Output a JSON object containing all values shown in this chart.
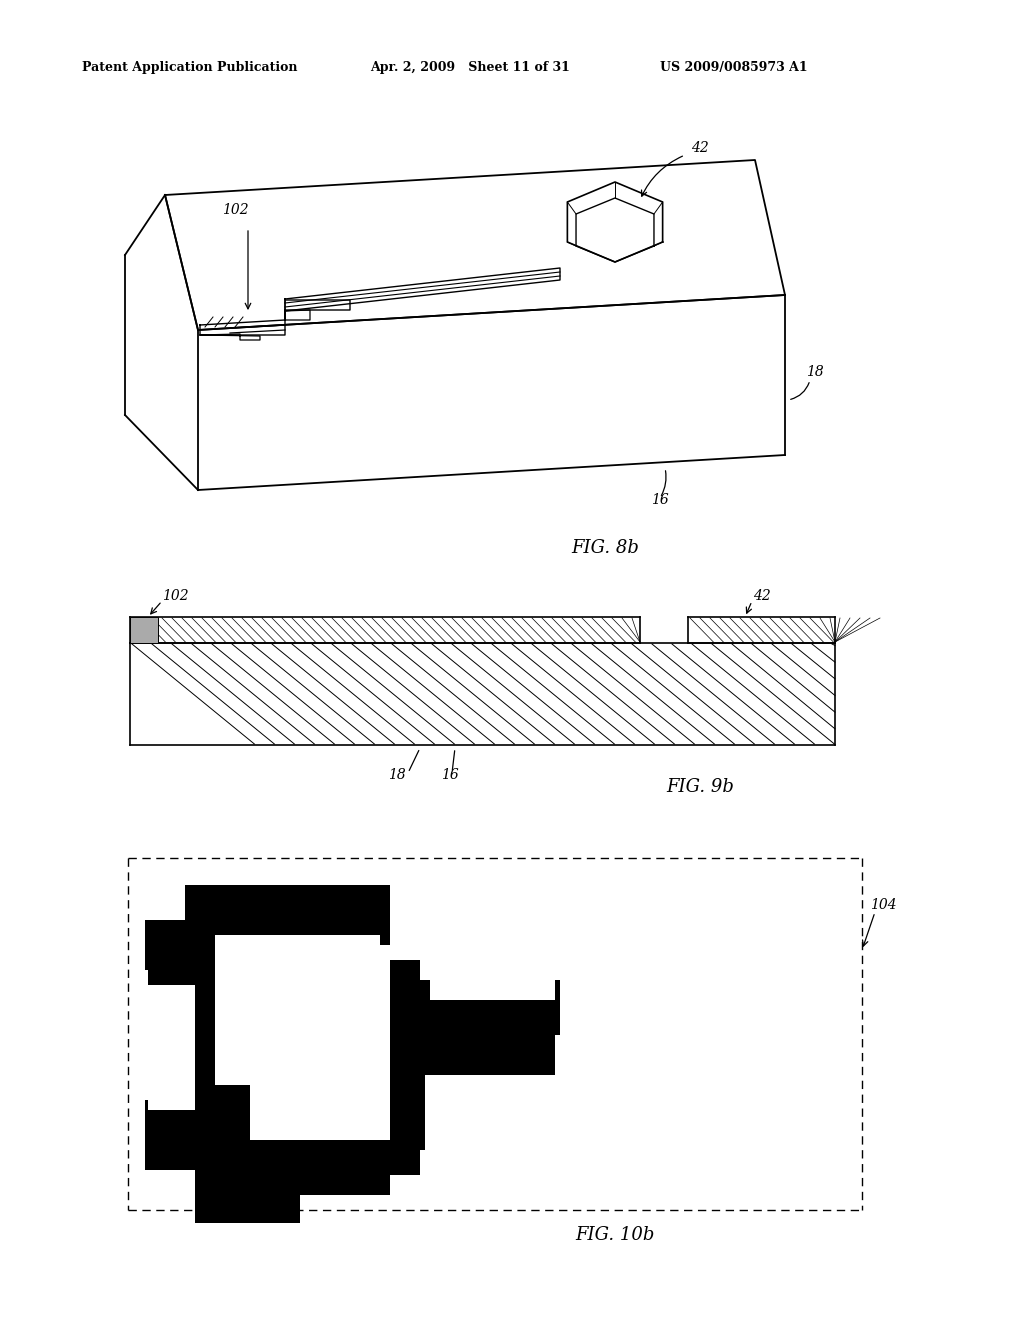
{
  "bg_color": "#ffffff",
  "header_left": "Patent Application Publication",
  "header_center": "Apr. 2, 2009   Sheet 11 of 31",
  "header_right": "US 2009/0085973 A1",
  "fig8b_label": "FIG. 8b",
  "fig9b_label": "FIG. 9b",
  "fig10b_label": "FIG. 10b",
  "label_102_fig8": "102",
  "label_42_fig8": "42",
  "label_16_fig8": "16",
  "label_18_fig8": "18",
  "label_102_fig9": "102",
  "label_42_fig9": "42",
  "label_16_fig9": "16",
  "label_18_fig9": "18",
  "label_104": "104"
}
